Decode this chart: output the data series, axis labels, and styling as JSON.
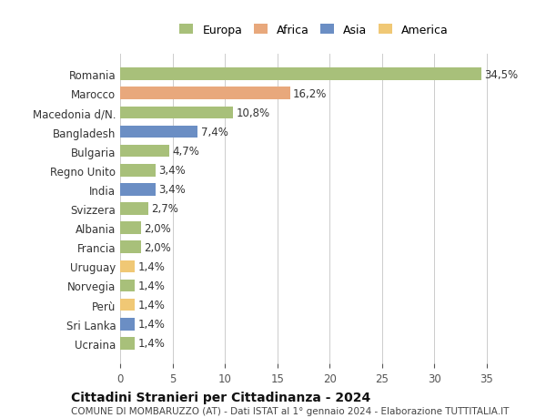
{
  "countries": [
    "Ucraina",
    "Sri Lanka",
    "Perù",
    "Norvegia",
    "Uruguay",
    "Francia",
    "Albania",
    "Svizzera",
    "India",
    "Regno Unito",
    "Bulgaria",
    "Bangladesh",
    "Macedonia d/N.",
    "Marocco",
    "Romania"
  ],
  "values": [
    1.4,
    1.4,
    1.4,
    1.4,
    1.4,
    2.0,
    2.0,
    2.7,
    3.4,
    3.4,
    4.7,
    7.4,
    10.8,
    16.2,
    34.5
  ],
  "labels": [
    "1,4%",
    "1,4%",
    "1,4%",
    "1,4%",
    "1,4%",
    "2,0%",
    "2,0%",
    "2,7%",
    "3,4%",
    "3,4%",
    "4,7%",
    "7,4%",
    "10,8%",
    "16,2%",
    "34,5%"
  ],
  "colors": [
    "#a8c07a",
    "#6b8ec4",
    "#f0c875",
    "#a8c07a",
    "#f0c875",
    "#a8c07a",
    "#a8c07a",
    "#a8c07a",
    "#6b8ec4",
    "#a8c07a",
    "#a8c07a",
    "#6b8ec4",
    "#a8c07a",
    "#e8a87c",
    "#a8c07a"
  ],
  "legend_labels": [
    "Europa",
    "Africa",
    "Asia",
    "America"
  ],
  "legend_colors": [
    "#a8c07a",
    "#e8a87c",
    "#6b8ec4",
    "#f0c875"
  ],
  "title_bold": "Cittadini Stranieri per Cittadinanza - 2024",
  "subtitle": "COMUNE DI MOMBARUZZO (AT) - Dati ISTAT al 1° gennaio 2024 - Elaborazione TUTTITALIA.IT",
  "xlim": [
    0,
    37
  ],
  "xticks": [
    0,
    5,
    10,
    15,
    20,
    25,
    30,
    35
  ],
  "background_color": "#ffffff",
  "grid_color": "#cccccc",
  "bar_height": 0.65,
  "label_fontsize": 8.5,
  "tick_fontsize": 8.5,
  "title_fontsize": 10,
  "subtitle_fontsize": 7.5
}
